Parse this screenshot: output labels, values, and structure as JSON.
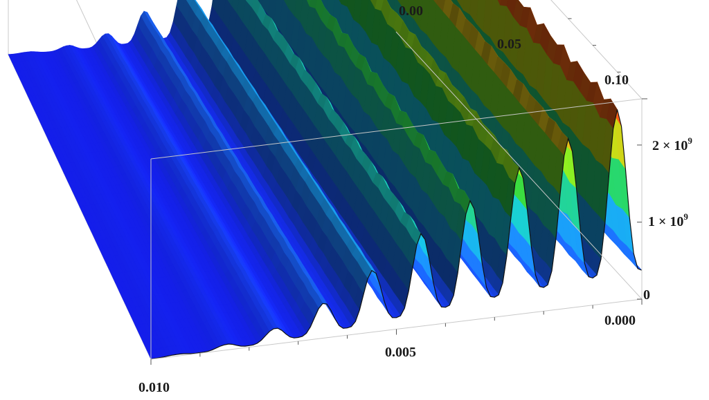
{
  "chart_data": {
    "type": "surface3d",
    "title": "",
    "xlabel": "",
    "ylabel": "",
    "zlabel": "",
    "x_axis": {
      "range": [
        0.0,
        0.01
      ],
      "tick_labels": [
        "0.000",
        "0.005",
        "0.010"
      ]
    },
    "y_axis": {
      "range": [
        0.0,
        0.1
      ],
      "tick_labels": [
        "0.00",
        "0.05",
        "0.10"
      ]
    },
    "z_axis": {
      "range": [
        0,
        2600000000
      ],
      "tick_labels": [
        {
          "base": "0",
          "exp": ""
        },
        {
          "base": "1 × 10",
          "exp": "9"
        },
        {
          "base": "2 × 10",
          "exp": "9"
        }
      ]
    },
    "ridges": [
      {
        "x": 0.0005,
        "z": 2500000000
      },
      {
        "x": 0.0015,
        "z": 2200000000
      },
      {
        "x": 0.0025,
        "z": 1900000000
      },
      {
        "x": 0.0035,
        "z": 1550000000
      },
      {
        "x": 0.0045,
        "z": 1200000000
      },
      {
        "x": 0.0055,
        "z": 800000000
      },
      {
        "x": 0.0065,
        "z": 450000000
      },
      {
        "x": 0.0075,
        "z": 200000000
      },
      {
        "x": 0.0085,
        "z": 70000000
      },
      {
        "x": 0.0095,
        "z": 20000000
      }
    ],
    "colormap": "rainbow (blue low → red high)",
    "box": true,
    "grid": false,
    "legend": "none"
  }
}
